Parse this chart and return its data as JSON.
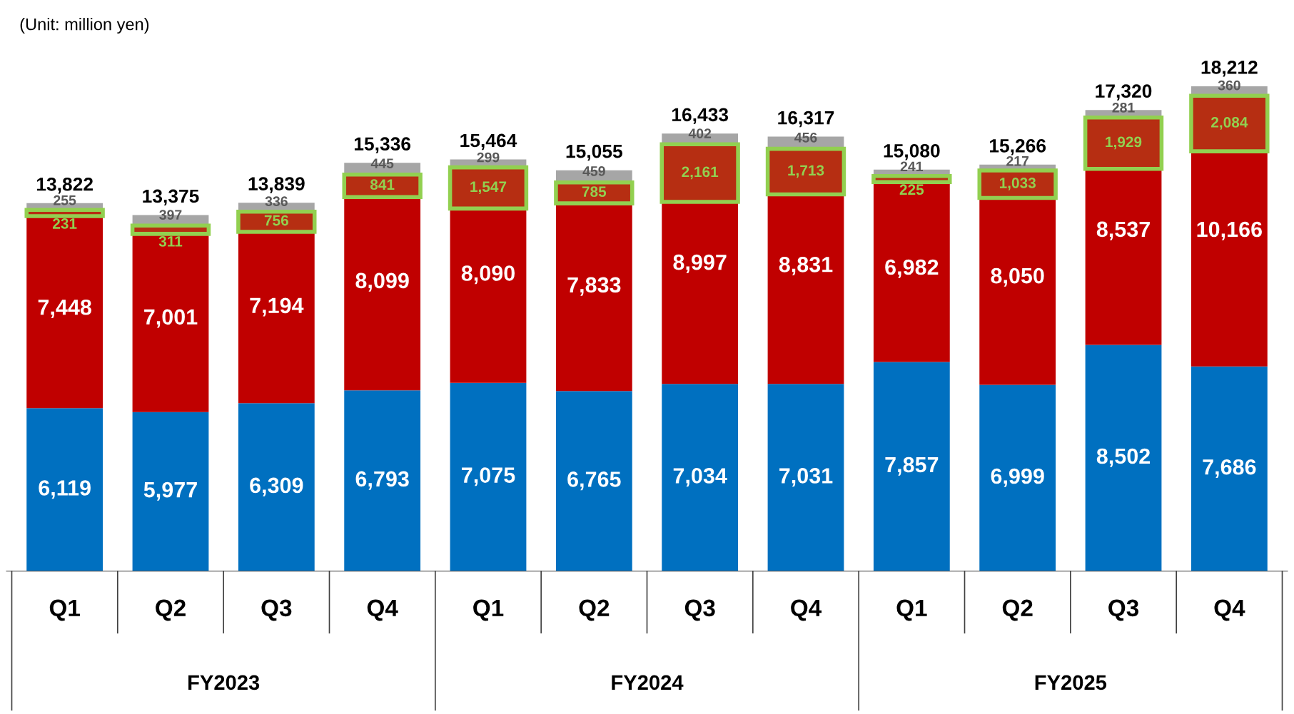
{
  "chart_data": {
    "type": "bar",
    "stacked": true,
    "categories": [
      "Q1",
      "Q2",
      "Q3",
      "Q4",
      "Q1",
      "Q2",
      "Q3",
      "Q4",
      "Q1",
      "Q2",
      "Q3",
      "Q4"
    ],
    "series": [
      {
        "color": "#0070c0",
        "values": [
          6119,
          5977,
          6309,
          6793,
          7075,
          6765,
          7034,
          7031,
          7857,
          6999,
          8502,
          7686
        ],
        "value_labels": [
          "6,119",
          "5,977",
          "6,309",
          "6,793",
          "7,075",
          "6,765",
          "7,034",
          "7,031",
          "7,857",
          "6,999",
          "8,502",
          "7,686"
        ]
      },
      {
        "color": "#c00000",
        "values": [
          7448,
          7001,
          7194,
          8099,
          8090,
          7833,
          8997,
          8831,
          6982,
          8050,
          8537,
          10166
        ],
        "value_labels": [
          "7,448",
          "7,001",
          "7,194",
          "8,099",
          "8,090",
          "7,833",
          "8,997",
          "8,831",
          "6,982",
          "8,050",
          "8,537",
          "10,166"
        ]
      },
      {
        "color": "#a6a6a6",
        "values": [
          255,
          397,
          336,
          445,
          299,
          459,
          402,
          456,
          241,
          217,
          281,
          360
        ],
        "value_labels": [
          "255",
          "397",
          "336",
          "445",
          "299",
          "459",
          "402",
          "456",
          "241",
          "217",
          "281",
          "360"
        ]
      }
    ],
    "bands": [
      {
        "axis": "y",
        "from": 13336,
        "to": 13567,
        "label": "231",
        "color": "#92d050"
      },
      {
        "axis": "y",
        "from": 12667,
        "to": 12978,
        "label": "311",
        "color": "#92d050"
      },
      {
        "axis": "y",
        "from": 12747,
        "to": 13503,
        "label": "756",
        "color": "#92d050"
      },
      {
        "axis": "y",
        "from": 14051,
        "to": 14892,
        "label": "841",
        "color": "#92d050"
      },
      {
        "axis": "y",
        "from": 13618,
        "to": 15165,
        "label": "1,547",
        "color": "#92d050"
      },
      {
        "axis": "y",
        "from": 13813,
        "to": 14598,
        "label": "785",
        "color": "#92d050"
      },
      {
        "axis": "y",
        "from": 13870,
        "to": 16031,
        "label": "2,161",
        "color": "#92d050"
      },
      {
        "axis": "y",
        "from": 14149,
        "to": 15862,
        "label": "1,713",
        "color": "#92d050"
      },
      {
        "axis": "y",
        "from": 14614,
        "to": 14839,
        "label": "225",
        "color": "#92d050"
      },
      {
        "axis": "y",
        "from": 14016,
        "to": 15049,
        "label": "1,033",
        "color": "#92d050"
      },
      {
        "axis": "y",
        "from": 15110,
        "to": 17039,
        "label": "1,929",
        "color": "#92d050"
      },
      {
        "axis": "y",
        "from": 15768,
        "to": 17852,
        "label": "2,084",
        "color": "#92d050"
      }
    ],
    "totals": [
      "13,822",
      "13,375",
      "13,839",
      "15,336",
      "15,464",
      "15,055",
      "16,433",
      "16,317",
      "15,080",
      "15,266",
      "17,320",
      "18,212"
    ],
    "annotations": [
      "(Unit: million yen)",
      "FY2023",
      "FY2024",
      "FY2025"
    ],
    "grid": false
  }
}
